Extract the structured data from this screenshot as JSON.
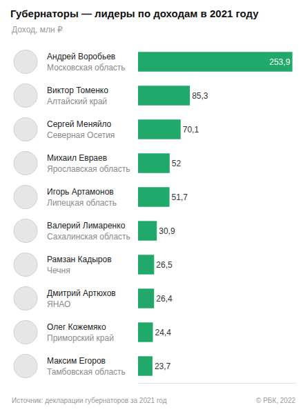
{
  "chart_data": {
    "type": "bar",
    "orientation": "horizontal",
    "title": "Губернаторы — лидеры по доходам в 2021 году",
    "subtitle": "Доход, млн ₽",
    "source": "Источник: декларации губернаторов за 2021 год",
    "credit": "© РБК, 2022",
    "categories": [
      "Андрей Воробьев",
      "Виктор Томенко",
      "Сергей Меняйло",
      "Михаил Евраев",
      "Игорь Артамонов",
      "Валерий Лимаренко",
      "Рамзан Кадыров",
      "Дмитрий Артюхов",
      "Олег Кожемяко",
      "Максим Егоров"
    ],
    "regions": [
      "Московская область",
      "Алтайский край",
      "Северная Осетия",
      "Ярославская область",
      "Липецкая область",
      "Сахалинская область",
      "Чечня",
      "ЯНАО",
      "Приморский край",
      "Тамбовская область"
    ],
    "values": [
      253.9,
      85.3,
      70.1,
      52,
      51.7,
      30.9,
      26.5,
      26.4,
      24.4,
      23.7
    ],
    "value_labels": [
      "253,9",
      "85,3",
      "70,1",
      "52",
      "51,7",
      "30,9",
      "26,5",
      "26,4",
      "24,4",
      "23,7"
    ],
    "data_labels": true,
    "color": "#21a86b",
    "xlim": [
      0,
      260
    ],
    "grid": false,
    "tick_labels": false
  }
}
